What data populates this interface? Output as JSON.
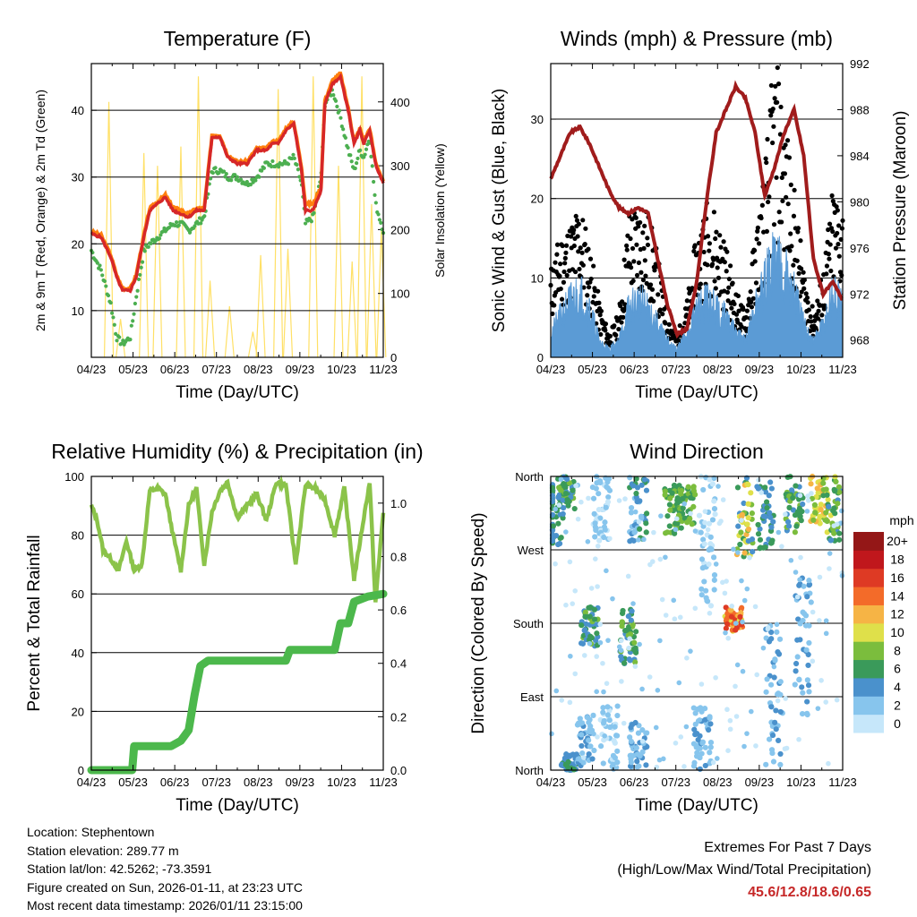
{
  "colors": {
    "temp2m": "#d62728",
    "temp9m": "#ff7f0e",
    "dewpoint": "#4caf50",
    "solar": "#ffe066",
    "wind": "#5b9bd5",
    "gust": "#000000",
    "pressure": "#a01c1c",
    "rh": "#8bc34a",
    "precip": "#4cb84c",
    "grid": "#000000",
    "extremes": "#c62828"
  },
  "time_ticks": [
    "04/23",
    "05/23",
    "06/23",
    "07/23",
    "08/23",
    "09/23",
    "10/23",
    "11/23"
  ],
  "chart_data": [
    {
      "type": "line",
      "title": "Temperature (F)",
      "xlabel": "Time (Day/UTC)",
      "ylabel": "2m & 9m T (Red, Orange) & 2m Td (Green)",
      "y2label": "Solar Insolation (Yellow)",
      "ylim": [
        3,
        47
      ],
      "y2lim": [
        0,
        460
      ],
      "yticks": [
        10,
        20,
        30,
        40
      ],
      "y2ticks": [
        0,
        100,
        200,
        300,
        400
      ],
      "x_days": [
        0,
        0.5,
        1,
        1.3,
        1.6,
        2,
        2.3,
        2.7,
        3,
        3.4,
        3.8,
        4.2,
        4.6,
        5,
        5.4,
        5.8,
        6.2,
        6.6,
        7,
        7.5,
        8,
        8.5,
        9,
        9.3,
        9.6,
        10,
        10.4,
        10.8,
        11,
        11.4,
        11.8,
        12,
        12.4,
        12.8,
        13.2,
        13.5,
        13.8,
        14,
        14.3,
        14.6,
        15
      ],
      "series": [
        {
          "name": "2m T",
          "values": [
            21.5,
            21,
            18,
            15,
            13,
            13,
            15,
            21,
            25,
            26,
            27,
            25,
            24.5,
            24,
            25,
            25,
            36,
            36,
            33,
            32,
            32,
            34,
            34,
            35,
            35,
            37,
            38,
            31,
            25,
            25,
            28,
            41,
            44,
            45,
            40,
            35,
            37,
            35,
            37,
            32,
            29
          ]
        },
        {
          "name": "9m T",
          "values": [
            21.8,
            21.3,
            18.3,
            15.3,
            13.3,
            13.3,
            15.3,
            21.3,
            25.3,
            26.3,
            27.3,
            25.5,
            25,
            24.5,
            25.3,
            25.3,
            36.3,
            36.3,
            33.3,
            32.3,
            32.3,
            34.3,
            34.3,
            35.3,
            35.3,
            37.3,
            38.3,
            31.5,
            26,
            26,
            28.5,
            41.5,
            44.5,
            45.5,
            40.3,
            35.3,
            37.3,
            35.3,
            37.3,
            32.3,
            29.3
          ]
        },
        {
          "name": "2m Td",
          "values": [
            19,
            16,
            11,
            6,
            5,
            6,
            12,
            19,
            20,
            21,
            22,
            23,
            23,
            22,
            23,
            24,
            31,
            31,
            30,
            30,
            29,
            30,
            32,
            32,
            32,
            32,
            33,
            29,
            23,
            24,
            30,
            41,
            43,
            39,
            34,
            31,
            34,
            33,
            36,
            26,
            22
          ]
        },
        {
          "name": "Solar",
          "axis": "y2",
          "peaks": [
            [
              0.9,
              400
            ],
            [
              1.5,
              60
            ],
            [
              2.7,
              320
            ],
            [
              3.4,
              300
            ],
            [
              4.6,
              330
            ],
            [
              5.5,
              440
            ],
            [
              6.1,
              120
            ],
            [
              7.1,
              80
            ],
            [
              8.7,
              160
            ],
            [
              8.3,
              40
            ],
            [
              9.6,
              420
            ],
            [
              10.1,
              170
            ],
            [
              11.4,
              440
            ],
            [
              12.7,
              300
            ],
            [
              13.4,
              150
            ],
            [
              13.9,
              440
            ],
            [
              14.4,
              240
            ],
            [
              14.9,
              200
            ]
          ]
        }
      ]
    },
    {
      "type": "scatter",
      "title": "Winds (mph) & Pressure (mb)",
      "xlabel": "Time (Day/UTC)",
      "ylabel": "Sonic Wind & Gust (Blue, Black)",
      "y2label": "Station Pressure (Maroon)",
      "ylim": [
        0,
        37
      ],
      "y2lim": [
        966.5,
        992
      ],
      "yticks": [
        0,
        10,
        20,
        30
      ],
      "y2ticks": [
        968,
        972,
        976,
        980,
        984,
        988,
        992
      ],
      "x_days": [
        0,
        0.5,
        1,
        1.5,
        2,
        2.5,
        3,
        3.5,
        4,
        4.5,
        5,
        5.5,
        6,
        6.5,
        7,
        7.5,
        8,
        8.5,
        9,
        9.5,
        10,
        10.5,
        11,
        11.5,
        12,
        12.5,
        13,
        13.5,
        14,
        14.5,
        15
      ],
      "series": [
        {
          "name": "Pressure",
          "axis": "y2",
          "values": [
            982,
            984,
            986,
            986.5,
            985,
            983,
            981,
            979.5,
            979,
            979.5,
            979,
            975,
            971,
            968.5,
            969,
            973,
            980,
            986,
            988,
            990,
            989,
            986,
            980.5,
            983,
            986,
            988,
            984,
            975,
            972,
            973,
            971.5
          ]
        },
        {
          "name": "Wind",
          "values": [
            3,
            5,
            7,
            8,
            6,
            2,
            1,
            2,
            6,
            7,
            6,
            4,
            2,
            1,
            3,
            6,
            7,
            6,
            5,
            3,
            2,
            6,
            9,
            13,
            11,
            8,
            4,
            2,
            4,
            8,
            6
          ]
        },
        {
          "name": "Gust",
          "values": [
            8,
            11,
            12,
            14,
            10,
            5,
            2,
            4,
            13,
            14,
            13,
            9,
            4,
            2,
            5,
            11,
            14,
            13,
            10,
            6,
            4,
            11,
            17,
            27,
            22,
            15,
            8,
            4,
            8,
            15,
            14
          ]
        }
      ]
    },
    {
      "type": "line",
      "title": "Relative Humidity (%) & Precipitation (in)",
      "xlabel": "Time (Day/UTC)",
      "ylabel": "Percent & Total Rainfall",
      "ylim": [
        0,
        100
      ],
      "y2lim": [
        0,
        1.1
      ],
      "yticks": [
        0,
        20,
        40,
        60,
        80,
        100
      ],
      "y2ticks": [
        0.0,
        0.2,
        0.4,
        0.6,
        0.8,
        1.0
      ],
      "x_days": [
        0,
        0.3,
        0.6,
        1,
        1.4,
        1.8,
        2.2,
        2.6,
        3,
        3.4,
        3.8,
        4.2,
        4.6,
        5,
        5.4,
        5.8,
        6.2,
        6.6,
        7,
        7.5,
        8,
        8.5,
        9,
        9.5,
        10,
        10.5,
        11,
        11.5,
        12,
        12.5,
        13,
        13.5,
        14,
        14.3,
        14.6,
        15
      ],
      "series": [
        {
          "name": "RH",
          "values": [
            90,
            85,
            75,
            72,
            68,
            78,
            68,
            70,
            95,
            96,
            94,
            80,
            68,
            90,
            96,
            70,
            88,
            95,
            98,
            86,
            90,
            94,
            85,
            98,
            97,
            70,
            97,
            96,
            92,
            80,
            96,
            65,
            86,
            98,
            57,
            88
          ]
        },
        {
          "name": "Precip",
          "axis": "y2",
          "steps": [
            [
              0,
              0
            ],
            [
              2.1,
              0
            ],
            [
              2.2,
              0.09
            ],
            [
              4.1,
              0.09
            ],
            [
              4.6,
              0.11
            ],
            [
              5.0,
              0.15
            ],
            [
              5.3,
              0.28
            ],
            [
              5.6,
              0.39
            ],
            [
              6.0,
              0.41
            ],
            [
              10.0,
              0.41
            ],
            [
              10.2,
              0.45
            ],
            [
              12.5,
              0.45
            ],
            [
              12.8,
              0.55
            ],
            [
              13.2,
              0.55
            ],
            [
              13.5,
              0.63
            ],
            [
              14.2,
              0.65
            ],
            [
              15,
              0.66
            ]
          ]
        }
      ]
    },
    {
      "type": "scatter",
      "title": "Wind Direction",
      "xlabel": "Time (Day/UTC)",
      "ylabel": "Direction (Colored By Speed)",
      "yticks": [
        "North",
        "East",
        "South",
        "West",
        "North"
      ],
      "colorbar_label": "mph",
      "colorbar_ticks": [
        "0",
        "2",
        "4",
        "6",
        "8",
        "10",
        "12",
        "14",
        "16",
        "18",
        "20+"
      ],
      "colorbar_colors": [
        "#c6e7fa",
        "#87c5ed",
        "#4a91cc",
        "#3a9a5a",
        "#7bbd3d",
        "#dfe04a",
        "#f6b445",
        "#f36b29",
        "#de3a24",
        "#c0171c",
        "#941717"
      ],
      "clusters": [
        {
          "day": 0.2,
          "dir": [
            270,
            350
          ],
          "speed": [
            3,
            7
          ]
        },
        {
          "day": 0.8,
          "dir": [
            320,
            360
          ],
          "speed": [
            4,
            8
          ]
        },
        {
          "day": 1.0,
          "dir": [
            0,
            20
          ],
          "speed": [
            3,
            6
          ]
        },
        {
          "day": 2.0,
          "dir": [
            150,
            200
          ],
          "speed": [
            3,
            8
          ]
        },
        {
          "day": 1.8,
          "dir": [
            5,
            70
          ],
          "speed": [
            1,
            4
          ]
        },
        {
          "day": 2.6,
          "dir": [
            280,
            360
          ],
          "speed": [
            0,
            3
          ]
        },
        {
          "day": 3.0,
          "dir": [
            0,
            80
          ],
          "speed": [
            0,
            3
          ]
        },
        {
          "day": 4.0,
          "dir": [
            130,
            200
          ],
          "speed": [
            4,
            8
          ]
        },
        {
          "day": 4.5,
          "dir": [
            280,
            360
          ],
          "speed": [
            2,
            6
          ]
        },
        {
          "day": 4.5,
          "dir": [
            0,
            60
          ],
          "speed": [
            1,
            5
          ]
        },
        {
          "day": 6.3,
          "dir": [
            290,
            350
          ],
          "speed": [
            5,
            9
          ]
        },
        {
          "day": 7.0,
          "dir": [
            300,
            350
          ],
          "speed": [
            5,
            9
          ]
        },
        {
          "day": 7.8,
          "dir": [
            0,
            80
          ],
          "speed": [
            1,
            4
          ]
        },
        {
          "day": 8.0,
          "dir": [
            200,
            360
          ],
          "speed": [
            0,
            3
          ]
        },
        {
          "day": 9.4,
          "dir": [
            170,
            200
          ],
          "speed": [
            10,
            17
          ]
        },
        {
          "day": 10.0,
          "dir": [
            260,
            360
          ],
          "speed": [
            4,
            12
          ]
        },
        {
          "day": 11.0,
          "dir": [
            270,
            360
          ],
          "speed": [
            3,
            7
          ]
        },
        {
          "day": 11.5,
          "dir": [
            0,
            180
          ],
          "speed": [
            1,
            4
          ]
        },
        {
          "day": 12.5,
          "dir": [
            290,
            360
          ],
          "speed": [
            3,
            9
          ]
        },
        {
          "day": 13.0,
          "dir": [
            60,
            240
          ],
          "speed": [
            1,
            5
          ]
        },
        {
          "day": 13.8,
          "dir": [
            300,
            360
          ],
          "speed": [
            8,
            13
          ]
        },
        {
          "day": 14.4,
          "dir": [
            280,
            360
          ],
          "speed": [
            4,
            10
          ]
        }
      ]
    }
  ],
  "info": {
    "location": "Location: Stephentown",
    "elevation": "Station elevation: 289.77 m",
    "latlon": "Station lat/lon: 42.5262; -73.3591",
    "created": "Figure created on Sun, 2026-01-11, at 23:23 UTC",
    "recent": "Most recent data timestamp: 2026/01/11 23:15:00"
  },
  "extremes": {
    "line1": "Extremes For Past 7 Days",
    "line2": "(High/Low/Max Wind/Total Precipitation)",
    "value": "45.6/12.8/18.6/0.65"
  }
}
